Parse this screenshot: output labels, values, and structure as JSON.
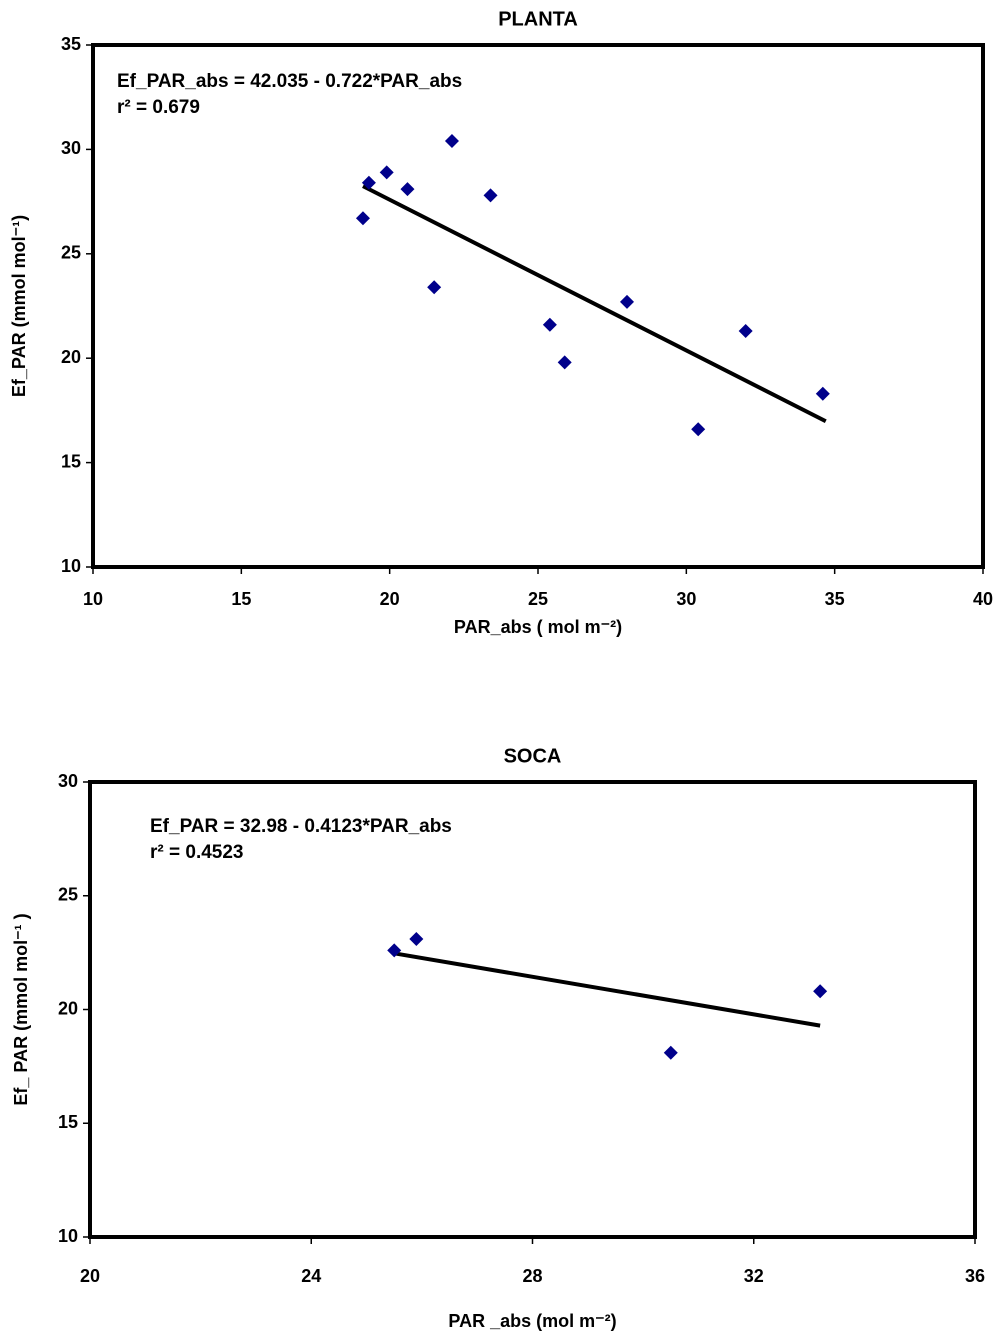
{
  "chart_data": [
    {
      "type": "scatter",
      "title": "PLANTA",
      "equation": "Ef_PAR_abs = 42.035 - 0.722*PAR_abs",
      "r2": "r² = 0.679",
      "xlabel": "PAR_abs ( mol m⁻²)",
      "ylabel": "Ef_PAR (mmol mol⁻¹)",
      "x": [
        19.1,
        19.3,
        19.9,
        20.6,
        21.5,
        22.1,
        23.4,
        25.4,
        25.9,
        28.0,
        30.4,
        32.0,
        34.6
      ],
      "y": [
        26.7,
        28.4,
        28.9,
        28.1,
        23.4,
        30.4,
        27.8,
        21.6,
        19.8,
        22.7,
        16.6,
        21.3,
        18.3
      ],
      "color": "#00008b",
      "trendline": {
        "x": [
          19.1,
          34.7
        ],
        "y": [
          28.24,
          16.98
        ]
      },
      "xlim": [
        10,
        40
      ],
      "xticks": [
        10,
        15,
        20,
        25,
        30,
        35,
        40
      ],
      "ylim": [
        10,
        35
      ],
      "yticks": [
        10,
        15,
        20,
        25,
        30,
        35
      ]
    },
    {
      "type": "scatter",
      "title": "SOCA",
      "equation": "Ef_PAR = 32.98 - 0.4123*PAR_abs",
      "r2": "r² = 0.4523",
      "xlabel": "PAR _abs (mol m⁻²)",
      "ylabel": "Ef_ PAR (mmol mol⁻¹ )",
      "x": [
        25.5,
        25.9,
        30.5,
        33.2
      ],
      "y": [
        22.6,
        23.1,
        18.1,
        20.8
      ],
      "color": "#00008b",
      "trendline": {
        "x": [
          25.5,
          33.2
        ],
        "y": [
          22.47,
          19.29
        ]
      },
      "xlim": [
        20,
        36
      ],
      "xticks": [
        20,
        24,
        28,
        32,
        36
      ],
      "ylim": [
        10,
        30
      ],
      "yticks": [
        10,
        15,
        20,
        25,
        30
      ]
    }
  ]
}
